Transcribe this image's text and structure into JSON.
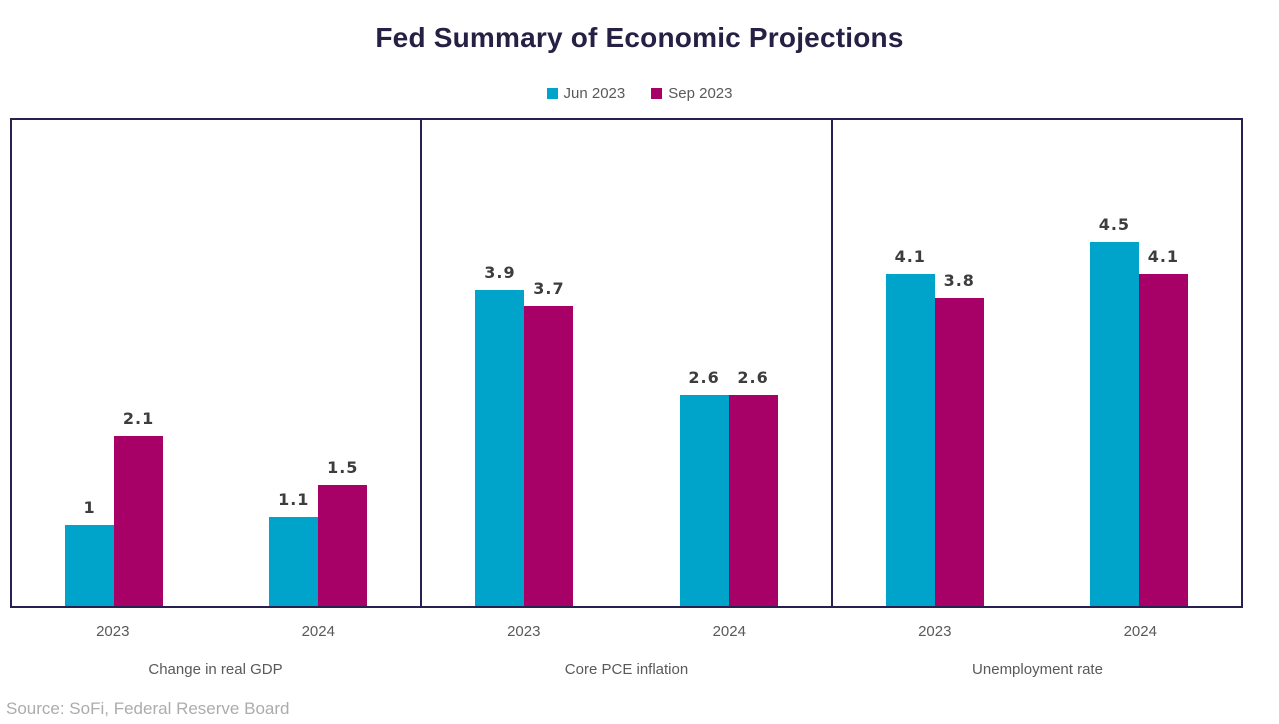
{
  "title": "Fed Summary of Economic Projections",
  "source_note": "Source: SoFi, Federal Reserve Board",
  "colors": {
    "series_jun": "#00A3CA",
    "series_sep": "#A70066",
    "frame_navy": "#262150",
    "title_navy": "#262144",
    "label_gray": "#595959",
    "value_gray": "#3d3d3d",
    "source_gray": "#abacad",
    "background": "#ffffff"
  },
  "legend": {
    "items": [
      {
        "label": "Jun 2023",
        "color": "#00A3CA",
        "swatch": "square-swatch-icon"
      },
      {
        "label": "Sep 2023",
        "color": "#A70066",
        "swatch": "square-swatch-icon"
      }
    ]
  },
  "chart_data": {
    "type": "bar",
    "title": "Fed Summary of Economic Projections",
    "categories": [
      "2023",
      "2024"
    ],
    "series_names": [
      "Jun 2023",
      "Sep 2023"
    ],
    "legend_position": "top-center",
    "ylim": [
      0,
      6
    ],
    "grid": false,
    "value_labels_shown": true,
    "group_centers_pct": [
      25,
      75
    ],
    "panels": [
      {
        "title": "Change in real GDP",
        "categories": [
          "2023",
          "2024"
        ],
        "series": [
          {
            "name": "Jun 2023",
            "color": "#00A3CA",
            "values": [
              1,
              1.1
            ],
            "labels": [
              "1",
              "1.1"
            ]
          },
          {
            "name": "Sep 2023",
            "color": "#A70066",
            "values": [
              2.1,
              1.5
            ],
            "labels": [
              "2.1",
              "1.5"
            ]
          }
        ]
      },
      {
        "title": "Core PCE inflation",
        "categories": [
          "2023",
          "2024"
        ],
        "series": [
          {
            "name": "Jun 2023",
            "color": "#00A3CA",
            "values": [
              3.9,
              2.6
            ],
            "labels": [
              "3.9",
              "2.6"
            ]
          },
          {
            "name": "Sep 2023",
            "color": "#A70066",
            "values": [
              3.7,
              2.6
            ],
            "labels": [
              "3.7",
              "2.6"
            ]
          }
        ]
      },
      {
        "title": "Unemployment rate",
        "categories": [
          "2023",
          "2024"
        ],
        "series": [
          {
            "name": "Jun 2023",
            "color": "#00A3CA",
            "values": [
              4.1,
              4.5
            ],
            "labels": [
              "4.1",
              "4.5"
            ]
          },
          {
            "name": "Sep 2023",
            "color": "#A70066",
            "values": [
              3.8,
              4.1
            ],
            "labels": [
              "3.8",
              "4.1"
            ]
          }
        ]
      }
    ]
  }
}
